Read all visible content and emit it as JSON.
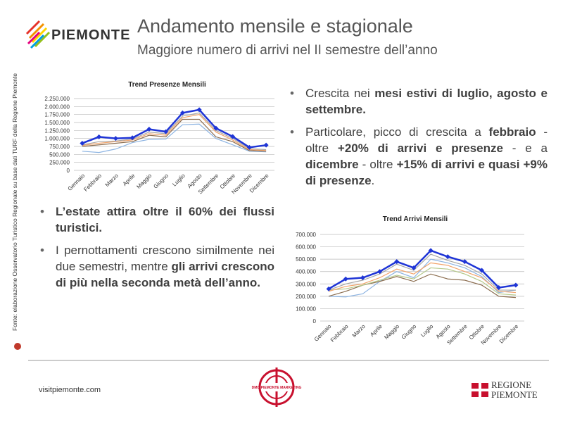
{
  "header": {
    "logo": "PIEMONTE",
    "title": "Andamento mensile e stagionale",
    "subtitle": "Maggiore numero di arrivi nel II semestre dell’anno"
  },
  "source": "Fonte: elaborazione Osservatorio Turistico Regionale su base dati TURF della Regione Piemonte",
  "chart_data": [
    {
      "type": "line",
      "title": "Trend Presenze Mensili",
      "categories": [
        "Gennaio",
        "Febbraio",
        "Marzo",
        "Aprile",
        "Maggio",
        "Giugno",
        "Luglio",
        "Agosto",
        "Settembre",
        "Ottobre",
        "Novembre",
        "Dicembre"
      ],
      "ylim": [
        0,
        2250000
      ],
      "yticks": [
        0,
        {
          "value": 250000,
          "label": "250.000"
        },
        {
          "value": 500000,
          "label": "500.000"
        },
        {
          "value": 750000,
          "label": "750.000"
        },
        {
          "value": 1000000,
          "label": "1.000.000"
        },
        {
          "value": 1250000,
          "label": "1.250.000"
        },
        {
          "value": 1500000,
          "label": "1.500.000"
        },
        {
          "value": 1750000,
          "label": "1.750.000"
        },
        {
          "value": 2000000,
          "label": "2.000.000"
        },
        {
          "value": 2250000,
          "label": "2.250.000"
        }
      ],
      "grid": true,
      "series": [
        {
          "color": "#8db4e2",
          "values": [
            600000,
            560000,
            670000,
            870000,
            970000,
            980000,
            1430000,
            1450000,
            1000000,
            800000,
            600000,
            580000
          ]
        },
        {
          "color": "#8b6d4f",
          "values": [
            750000,
            800000,
            850000,
            900000,
            1100000,
            1050000,
            1600000,
            1600000,
            1050000,
            900000,
            620000,
            600000
          ]
        },
        {
          "color": "#f2a46b",
          "values": [
            780000,
            850000,
            900000,
            950000,
            1150000,
            1100000,
            1650000,
            1750000,
            1200000,
            950000,
            650000,
            620000
          ]
        },
        {
          "color": "#a6a6a6",
          "values": [
            800000,
            900000,
            920000,
            980000,
            1200000,
            1150000,
            1700000,
            1800000,
            1250000,
            1000000,
            680000,
            650000
          ]
        },
        {
          "color": "#1f35d6",
          "marker": "diamond",
          "values": [
            850000,
            1050000,
            1000000,
            1020000,
            1290000,
            1210000,
            1800000,
            1900000,
            1320000,
            1060000,
            720000,
            790000
          ]
        }
      ]
    },
    {
      "type": "line",
      "title": "Trend Arrivi Mensili",
      "categories": [
        "Gennaio",
        "Febbraio",
        "Marzo",
        "Aprile",
        "Maggio",
        "Giugno",
        "Luglio",
        "Agosto",
        "Settembre",
        "Ottobre",
        "Novembre",
        "Dicembre"
      ],
      "ylim": [
        0,
        700000
      ],
      "yticks": [
        0,
        {
          "value": 100000,
          "label": "100.000"
        },
        {
          "value": 200000,
          "label": "200.000"
        },
        {
          "value": 300000,
          "label": "300.000"
        },
        {
          "value": 400000,
          "label": "400.000"
        },
        {
          "value": 500000,
          "label": "500.000"
        },
        {
          "value": 600000,
          "label": "600.000"
        },
        {
          "value": 700000,
          "label": "700.000"
        }
      ],
      "grid": true,
      "series": [
        {
          "color": "#8db4e2",
          "values": [
            200000,
            195000,
            220000,
            320000,
            400000,
            350000,
            500000,
            470000,
            430000,
            360000,
            230000,
            250000
          ]
        },
        {
          "color": "#8b6d4f",
          "values": [
            200000,
            240000,
            290000,
            320000,
            360000,
            320000,
            380000,
            340000,
            330000,
            290000,
            200000,
            190000
          ]
        },
        {
          "color": "#b5c98a",
          "values": [
            250000,
            260000,
            290000,
            330000,
            370000,
            340000,
            430000,
            420000,
            380000,
            320000,
            220000,
            210000
          ]
        },
        {
          "color": "#f2a46b",
          "values": [
            240000,
            280000,
            300000,
            350000,
            420000,
            380000,
            470000,
            450000,
            400000,
            350000,
            240000,
            230000
          ]
        },
        {
          "color": "#a6a6a6",
          "values": [
            250000,
            300000,
            330000,
            380000,
            460000,
            410000,
            540000,
            490000,
            450000,
            380000,
            250000,
            250000
          ]
        },
        {
          "color": "#1f35d6",
          "marker": "diamond",
          "values": [
            260000,
            340000,
            350000,
            400000,
            480000,
            430000,
            570000,
            520000,
            480000,
            410000,
            270000,
            290000
          ]
        }
      ]
    }
  ],
  "bullets_right": [
    [
      {
        "text": "Crescita nei "
      },
      {
        "text": "mesi estivi di luglio, agosto e settembre.",
        "bold": true
      }
    ],
    [
      {
        "text": "Particolare, picco di crescita a "
      },
      {
        "text": "febbraio",
        "bold": true
      },
      {
        "text": " - oltre "
      },
      {
        "text": "+20% di arrivi e presenze",
        "bold": true
      },
      {
        "text": " - e a "
      },
      {
        "text": "dicembre",
        "bold": true
      },
      {
        "text": " - oltre "
      },
      {
        "text": "+15% di arrivi e quasi +9% di presenze",
        "bold": true
      },
      {
        "text": "."
      }
    ]
  ],
  "bullets_left": [
    [
      {
        "text": "L’estate attira oltre il 60% dei flussi turistici.",
        "bold": true
      }
    ],
    [
      {
        "text": "I pernottamenti crescono similmente nei due semestri, mentre "
      },
      {
        "text": "gli arrivi crescono di più nella seconda metà dell’anno.",
        "bold": true
      }
    ]
  ],
  "footer": {
    "website": "visitpiemonte.com",
    "center_logo": "DMO PIEMONTE MARKETING",
    "right_logo": "REGIONE PIEMONTE"
  }
}
